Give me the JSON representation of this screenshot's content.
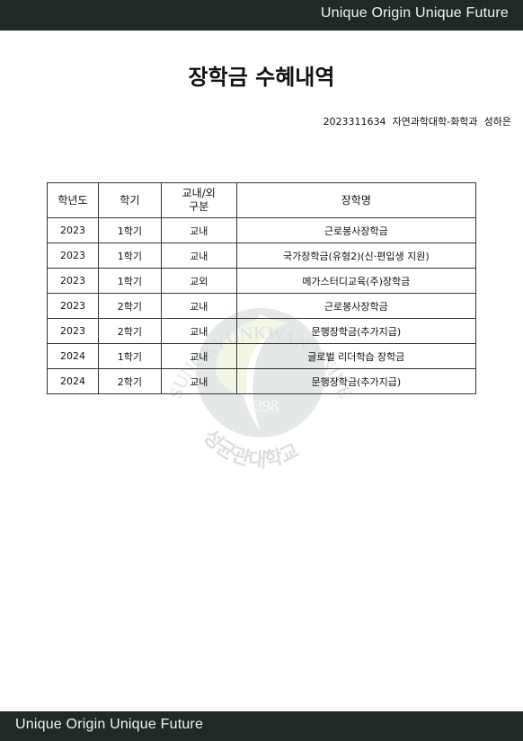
{
  "header": {
    "tagline": "Unique Origin Unique Future"
  },
  "footer": {
    "tagline": "Unique Origin Unique Future"
  },
  "document": {
    "title": "장학금 수혜내역",
    "student_id": "2023311634",
    "department": "자연과학대학-화학과",
    "name": "성하은"
  },
  "watermark": {
    "arc_text": "SUNGKYUNKWAN UNIVERSITY",
    "year": "1398",
    "korean": "성균관대학교"
  },
  "table": {
    "headers": [
      "학년도",
      "학기",
      "교내/외 구분",
      "장학명"
    ],
    "rows": [
      [
        "2023",
        "1학기",
        "교내",
        "근로봉사장학금"
      ],
      [
        "2023",
        "1학기",
        "교내",
        "국가장학금(유형2)(신·편입생 지원)"
      ],
      [
        "2023",
        "1학기",
        "교외",
        "메가스터디교육(주)장학금"
      ],
      [
        "2023",
        "2학기",
        "교내",
        "근로봉사장학금"
      ],
      [
        "2023",
        "2학기",
        "교내",
        "문행장학금(추가지급)"
      ],
      [
        "2024",
        "1학기",
        "교내",
        "글로벌 리더학습 장학금"
      ],
      [
        "2024",
        "2학기",
        "교내",
        "문행장학금(추가지급)"
      ]
    ]
  }
}
